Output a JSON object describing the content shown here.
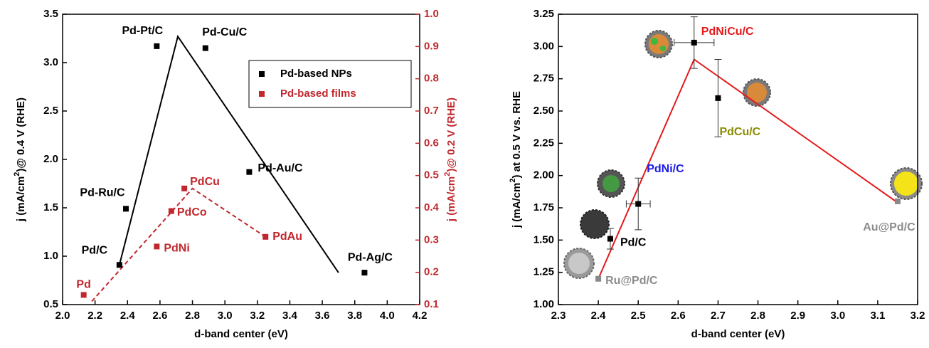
{
  "chart_data": [
    {
      "type": "scatter",
      "xlabel": "d-band center (eV)",
      "ylabel": [
        "j (mA/cm",
        "2",
        ")@ 0.4 V (RHE)"
      ],
      "y2label": [
        "j (mA/cm",
        "2",
        ")@ 0.2 V (RHE)"
      ],
      "xlim": [
        2.0,
        4.2
      ],
      "xticks": [
        {
          "value": 2,
          "label": "2.0"
        },
        2.2,
        2.4,
        2.6,
        2.8,
        {
          "value": 3,
          "label": "3.0"
        },
        3.2,
        3.4,
        3.6,
        3.8,
        {
          "value": 4,
          "label": "4.0"
        },
        4.2
      ],
      "ylim": [
        0.5,
        3.5
      ],
      "yticks": [
        0.5,
        {
          "value": 1,
          "label": "1.0"
        },
        1.5,
        {
          "value": 2,
          "label": "2.0"
        },
        2.5,
        {
          "value": 3,
          "label": "3.0"
        },
        3.5
      ],
      "y2lim": [
        0.1,
        1.0
      ],
      "y2ticks": [
        0.1,
        0.2,
        0.3,
        0.4,
        0.5,
        0.6,
        0.7,
        0.8,
        0.9,
        {
          "value": 1,
          "label": "1.0"
        }
      ],
      "y2color": "#c0282d",
      "legend": "upper right",
      "series": [
        {
          "name": "Pd-based NPs",
          "color": "#000000",
          "x": [
            2.58,
            2.88,
            3.15,
            2.39,
            2.35,
            3.86
          ],
          "values": [
            3.17,
            3.15,
            1.87,
            1.49,
            0.91,
            0.83
          ],
          "labels": [
            "Pd-Pt/C",
            "Pd-Cu/C",
            "Pd-Au/C",
            "Pd-Ru/C",
            "Pd/C",
            "Pd-Ag/C"
          ]
        },
        {
          "name": "Pd-based films",
          "color": "#c0282d",
          "axis": "y2",
          "x": [
            2.13,
            2.58,
            2.67,
            2.75,
            3.25
          ],
          "values": [
            0.13,
            0.28,
            0.39,
            0.46,
            0.31
          ],
          "labels": [
            "Pd",
            "PdNi",
            "PdCo",
            "PdCu",
            "PdAu"
          ]
        }
      ],
      "lines": [
        {
          "color": "#000000",
          "x": [
            2.35,
            2.71,
            3.7
          ],
          "values": [
            0.91,
            3.27,
            0.83
          ]
        },
        {
          "color": "#c0282d",
          "dashed": true,
          "axis": "y2",
          "x": [
            2.18,
            2.8,
            3.25
          ],
          "values": [
            0.11,
            0.46,
            0.31
          ]
        }
      ]
    },
    {
      "type": "scatter",
      "xlabel": "d-band center (eV)",
      "ylabel": [
        "j (mA/cm",
        "2",
        ") at 0.5 V vs. RHE"
      ],
      "xlim": [
        2.3,
        3.2
      ],
      "xticks": [
        2.3,
        2.4,
        2.5,
        2.6,
        2.7,
        2.8,
        2.9,
        {
          "value": 3,
          "label": "3.0"
        },
        3.1,
        3.2
      ],
      "ylim": [
        1.0,
        3.25
      ],
      "yticks": [
        {
          "value": 1,
          "label": "1.00"
        },
        1.25,
        {
          "value": 1.5,
          "label": "1.50"
        },
        1.75,
        {
          "value": 2,
          "label": "2.00"
        },
        2.25,
        {
          "value": 2.5,
          "label": "2.50"
        },
        2.75,
        {
          "value": 3,
          "label": "3.00"
        },
        3.25
      ],
      "series": [
        {
          "color": "#000000",
          "x": [
            2.4,
            2.43,
            2.5,
            2.64,
            2.7,
            3.15
          ],
          "values": [
            1.2,
            1.51,
            1.78,
            3.03,
            2.6,
            1.8
          ],
          "xerr": [
            null,
            null,
            0.03,
            0.05,
            null,
            null
          ],
          "yerr": [
            null,
            0.08,
            0.2,
            0.2,
            0.3,
            null
          ],
          "point_colors": [
            "#888888",
            "#000000",
            "#000000",
            "#000000",
            "#000000",
            "#888888"
          ],
          "labels": [
            "Ru@Pd/C",
            "Pd/C",
            "PdNi/C",
            "PdNiCu/C",
            "PdCu/C",
            "Au@Pd/C"
          ],
          "label_colors": [
            "#8c8c8c",
            "#000000",
            "#1a1ae6",
            "#e31a1c",
            "#8b8b00",
            "#8c8c8c"
          ]
        }
      ],
      "lines": [
        {
          "color": "#e31a1c",
          "x": [
            2.4,
            2.64,
            3.15
          ],
          "values": [
            1.2,
            2.9,
            1.79
          ]
        }
      ]
    }
  ]
}
